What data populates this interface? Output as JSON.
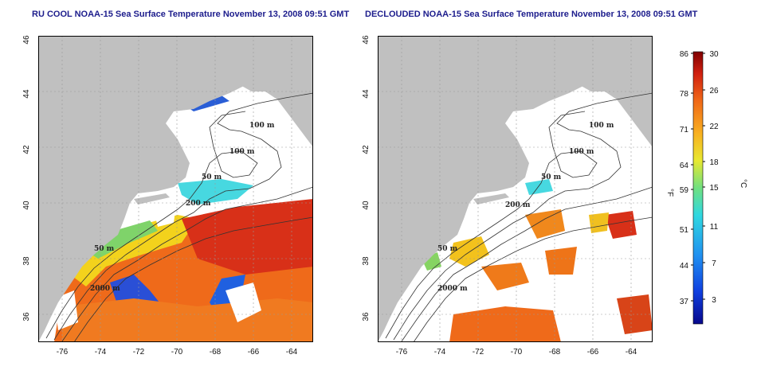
{
  "left_panel": {
    "title": "RU COOL NOAA-15 Sea Surface Temperature November 13, 2008 09:51 GMT"
  },
  "right_panel": {
    "title": "DECLOUDED NOAA-15 Sea Surface Temperature November 13, 2008 09:51 GMT"
  },
  "map_axes": {
    "lon_ticks": [
      "-76",
      "-74",
      "-72",
      "-70",
      "-68",
      "-66",
      "-64"
    ],
    "lat_ticks": [
      "36",
      "38",
      "40",
      "42",
      "44",
      "46"
    ]
  },
  "contour_labels": {
    "m100a": "100 m",
    "m100b": "100 m",
    "m50a": "50 m",
    "m50b": "50 m",
    "m200": "200 m",
    "m2000": "2000 m"
  },
  "colorbar": {
    "unit_f": "°F",
    "unit_c": "°C",
    "f_ticks": [
      "86",
      "78",
      "71",
      "64",
      "59",
      "51",
      "44",
      "37"
    ],
    "c_ticks": [
      "30",
      "26",
      "22",
      "18",
      "15",
      "11",
      "7",
      "3"
    ]
  },
  "colors": {
    "land": "#c0c0c0",
    "cloud": "#ffffff",
    "title": "#1c1c8c"
  }
}
